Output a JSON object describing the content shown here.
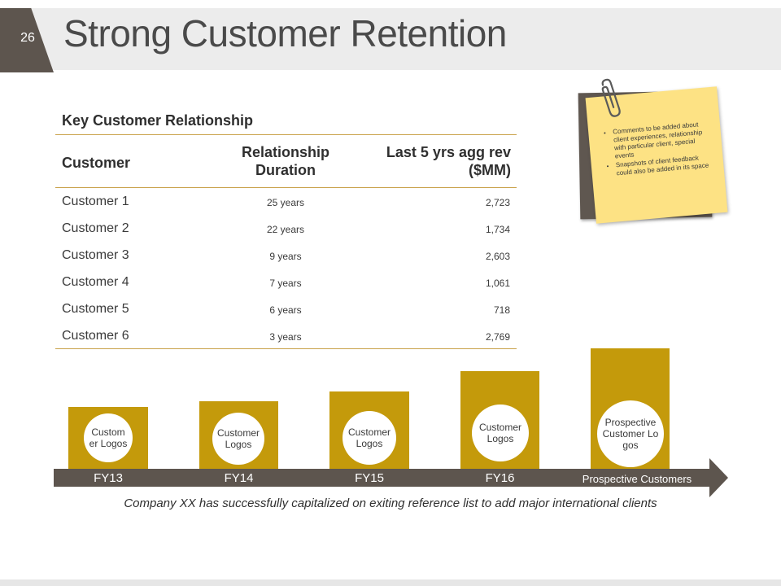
{
  "header": {
    "page_number": "26",
    "title": "Strong Customer Retention"
  },
  "table": {
    "caption": "Key Customer Relationship",
    "columns": {
      "customer": "Customer",
      "duration": "Relationship Duration",
      "revenue": "Last 5 yrs agg rev ($MM)"
    },
    "rows": [
      {
        "customer": "Customer 1",
        "duration": "25 years",
        "revenue": "2,723"
      },
      {
        "customer": "Customer 2",
        "duration": "22 years",
        "revenue": "1,734"
      },
      {
        "customer": "Customer 3",
        "duration": "9 years",
        "revenue": "2,603"
      },
      {
        "customer": "Customer 4",
        "duration": "7 years",
        "revenue": "1,061"
      },
      {
        "customer": "Customer 5",
        "duration": "6 years",
        "revenue": "718"
      },
      {
        "customer": "Customer 6",
        "duration": "3 years",
        "revenue": "2,769"
      }
    ]
  },
  "note": {
    "bullets": [
      "Comments to be added about client experiences, relationship with particular client, special events",
      "Snapshots of client feedback could also be added in its space"
    ]
  },
  "timeline": {
    "stages": [
      {
        "label": "FY13",
        "logo_text": "Customer Logos"
      },
      {
        "label": "FY14",
        "logo_text": "Customer Logos"
      },
      {
        "label": "FY15",
        "logo_text": "Customer Logos"
      },
      {
        "label": "FY16",
        "logo_text": "Customer Logos"
      },
      {
        "label": "Prospective Customers",
        "logo_text": "Prospective Customer Logos"
      }
    ],
    "footer": "Company XX has successfully capitalized on exiting reference list to add major international clients"
  },
  "colors": {
    "accent_gold": "#c49a0b",
    "dark_brown": "#5d554e",
    "note_yellow": "#fde284",
    "rule_gold": "#c9a24a"
  }
}
